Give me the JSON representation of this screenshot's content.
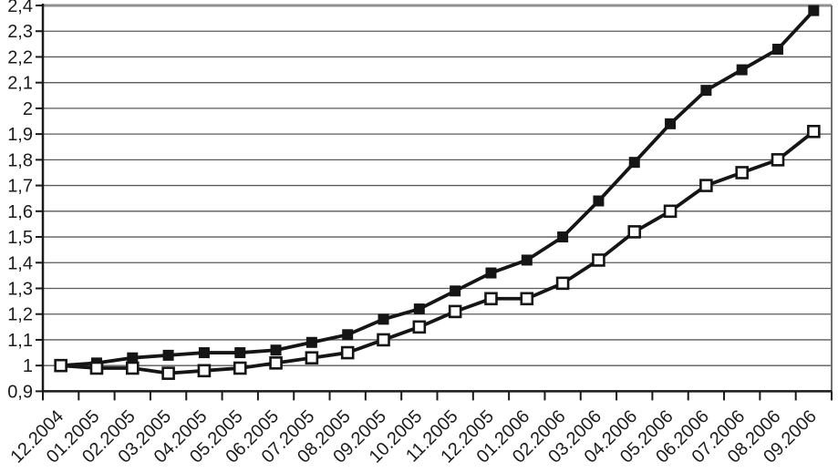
{
  "chart_data": {
    "type": "line",
    "title": "",
    "xlabel": "",
    "ylabel": "",
    "legend": "none",
    "grid": true,
    "ylim": [
      0.9,
      2.4
    ],
    "decimal_style": "comma",
    "categories": [
      "12.2004",
      "01.2005",
      "02.2005",
      "03.2005",
      "04.2005",
      "05.2005",
      "06.2005",
      "07.2005",
      "08.2005",
      "09.2005",
      "10.2005",
      "11.2005",
      "12.2005",
      "01.2006",
      "02.2006",
      "03.2006",
      "04.2006",
      "05.2006",
      "06.2006",
      "07.2006",
      "08.2006",
      "09.2006"
    ],
    "y_ticks": [
      {
        "value": 0.9,
        "label": "0,9"
      },
      {
        "value": 1.0,
        "label": "1"
      },
      {
        "value": 1.1,
        "label": "1,1"
      },
      {
        "value": 1.2,
        "label": "1,2"
      },
      {
        "value": 1.3,
        "label": "1,3"
      },
      {
        "value": 1.4,
        "label": "1,4"
      },
      {
        "value": 1.5,
        "label": "1,5"
      },
      {
        "value": 1.6,
        "label": "1,6"
      },
      {
        "value": 1.7,
        "label": "1,7"
      },
      {
        "value": 1.8,
        "label": "1,8"
      },
      {
        "value": 1.9,
        "label": "1,9"
      },
      {
        "value": 2.0,
        "label": "2"
      },
      {
        "value": 2.1,
        "label": "2,1"
      },
      {
        "value": 2.2,
        "label": "2,2"
      },
      {
        "value": 2.3,
        "label": "2,3"
      },
      {
        "value": 2.4,
        "label": "2,4"
      }
    ],
    "series": [
      {
        "name": "filled-squares",
        "marker": "filled-square",
        "line_color": "#151515",
        "marker_fill": "#151515",
        "values": [
          1.0,
          1.01,
          1.03,
          1.04,
          1.05,
          1.05,
          1.06,
          1.09,
          1.12,
          1.18,
          1.22,
          1.29,
          1.36,
          1.41,
          1.5,
          1.64,
          1.79,
          1.94,
          2.07,
          2.15,
          2.23,
          2.38
        ]
      },
      {
        "name": "open-squares",
        "marker": "open-square",
        "line_color": "#151515",
        "marker_fill": "#ffffff",
        "values": [
          1.0,
          0.99,
          0.99,
          0.97,
          0.98,
          0.99,
          1.01,
          1.03,
          1.05,
          1.1,
          1.15,
          1.21,
          1.26,
          1.26,
          1.32,
          1.41,
          1.52,
          1.6,
          1.7,
          1.75,
          1.8,
          1.91
        ]
      }
    ],
    "colors": {
      "axis": "#1a1a1a",
      "gridline": "#5a5a5a",
      "plot_top_border": "#8f8f8f",
      "plot_right_border": "#6f6f6f",
      "background": "#ffffff"
    }
  }
}
